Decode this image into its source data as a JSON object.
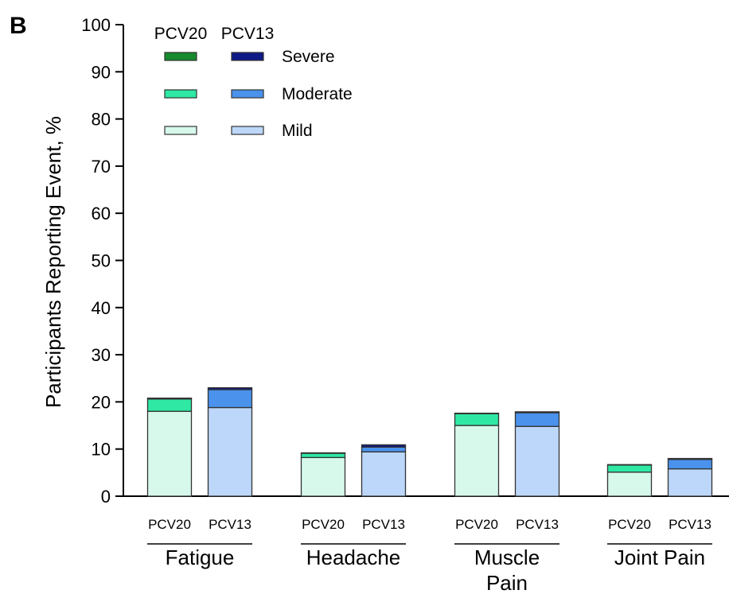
{
  "panel_label": "B",
  "chart_data": {
    "type": "bar",
    "stacked": true,
    "ylabel": "Participants Reporting Event, %",
    "ylim": [
      0,
      100
    ],
    "yticks": [
      0,
      10,
      20,
      30,
      40,
      50,
      60,
      70,
      80,
      90,
      100
    ],
    "grid": false,
    "legend_position": "top-left",
    "legend": {
      "column_headers": [
        "PCV20",
        "PCV13"
      ],
      "levels": [
        "Severe",
        "Moderate",
        "Mild"
      ]
    },
    "groups": [
      {
        "label_lines": [
          "Fatigue"
        ],
        "bars": [
          {
            "label": "PCV20",
            "vaccine": "PCV20",
            "mild": 18.0,
            "moderate": 2.6,
            "severe": 0.2
          },
          {
            "label": "PCV13",
            "vaccine": "PCV13",
            "mild": 18.8,
            "moderate": 3.8,
            "severe": 0.4
          }
        ]
      },
      {
        "label_lines": [
          "Headache"
        ],
        "bars": [
          {
            "label": "PCV20",
            "vaccine": "PCV20",
            "mild": 8.2,
            "moderate": 0.9,
            "severe": 0.1
          },
          {
            "label": "PCV13",
            "vaccine": "PCV13",
            "mild": 9.4,
            "moderate": 1.0,
            "severe": 0.5
          }
        ]
      },
      {
        "label_lines": [
          "Muscle",
          "Pain"
        ],
        "bars": [
          {
            "label": "PCV20",
            "vaccine": "PCV20",
            "mild": 15.0,
            "moderate": 2.5,
            "severe": 0.1
          },
          {
            "label": "PCV13",
            "vaccine": "PCV13",
            "mild": 14.8,
            "moderate": 2.9,
            "severe": 0.2
          }
        ]
      },
      {
        "label_lines": [
          "Joint Pain"
        ],
        "bars": [
          {
            "label": "PCV20",
            "vaccine": "PCV20",
            "mild": 5.1,
            "moderate": 1.5,
            "severe": 0.1
          },
          {
            "label": "PCV13",
            "vaccine": "PCV13",
            "mild": 5.8,
            "moderate": 2.0,
            "severe": 0.2
          }
        ]
      }
    ]
  },
  "colors": {
    "PCV20": {
      "mild": "#d6f9ec",
      "moderate": "#2ee8a4",
      "severe": "#178a2e"
    },
    "PCV13": {
      "mild": "#bcd7fa",
      "moderate": "#4a92ec",
      "severe": "#0e1a86"
    },
    "outline": "#333333"
  }
}
